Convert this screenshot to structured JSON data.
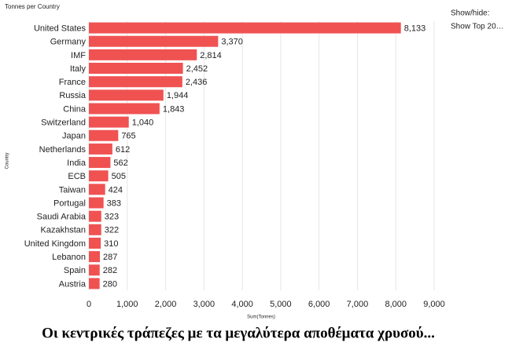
{
  "chart_data": {
    "type": "bar",
    "orientation": "horizontal",
    "title": "Tonnes per Country",
    "x_label": "Sum(Tonnes)",
    "y_label": "Country",
    "categories": [
      "United States",
      "Germany",
      "IMF",
      "Italy",
      "France",
      "Russia",
      "China",
      "Switzerland",
      "Japan",
      "Netherlands",
      "India",
      "ECB",
      "Taiwan",
      "Portugal",
      "Saudi Arabia",
      "Kazakhstan",
      "United Kingdom",
      "Lebanon",
      "Spain",
      "Austria"
    ],
    "values": [
      8133,
      3370,
      2814,
      2452,
      2436,
      1944,
      1843,
      1040,
      765,
      612,
      562,
      505,
      424,
      383,
      323,
      322,
      310,
      287,
      282,
      280
    ],
    "value_labels": [
      "8,133",
      "3,370",
      "2,814",
      "2,452",
      "2,436",
      "1,944",
      "1,843",
      "1,040",
      "765",
      "612",
      "562",
      "505",
      "424",
      "383",
      "323",
      "322",
      "310",
      "287",
      "282",
      "280"
    ],
    "color": "#f05252",
    "xlim": [
      0,
      9000
    ],
    "xticks": [
      0,
      {
        "value": 1000,
        "label": "1,000"
      },
      {
        "value": 2000,
        "label": "2,000"
      },
      {
        "value": 3000,
        "label": "3,000"
      },
      {
        "value": 4000,
        "label": "4,000"
      },
      {
        "value": 5000,
        "label": "5,000"
      },
      {
        "value": 6000,
        "label": "6,000"
      },
      {
        "value": 7000,
        "label": "7,000"
      },
      {
        "value": 8000,
        "label": "8,000"
      },
      {
        "value": 9000,
        "label": "9,000"
      }
    ],
    "grid": true
  },
  "controls": {
    "label": "Show/hide:",
    "option": "Show Top 20…"
  },
  "caption": "Οι κεντρικές τράπεζες με τα μεγαλύτερα αποθέματα χρυσού..."
}
